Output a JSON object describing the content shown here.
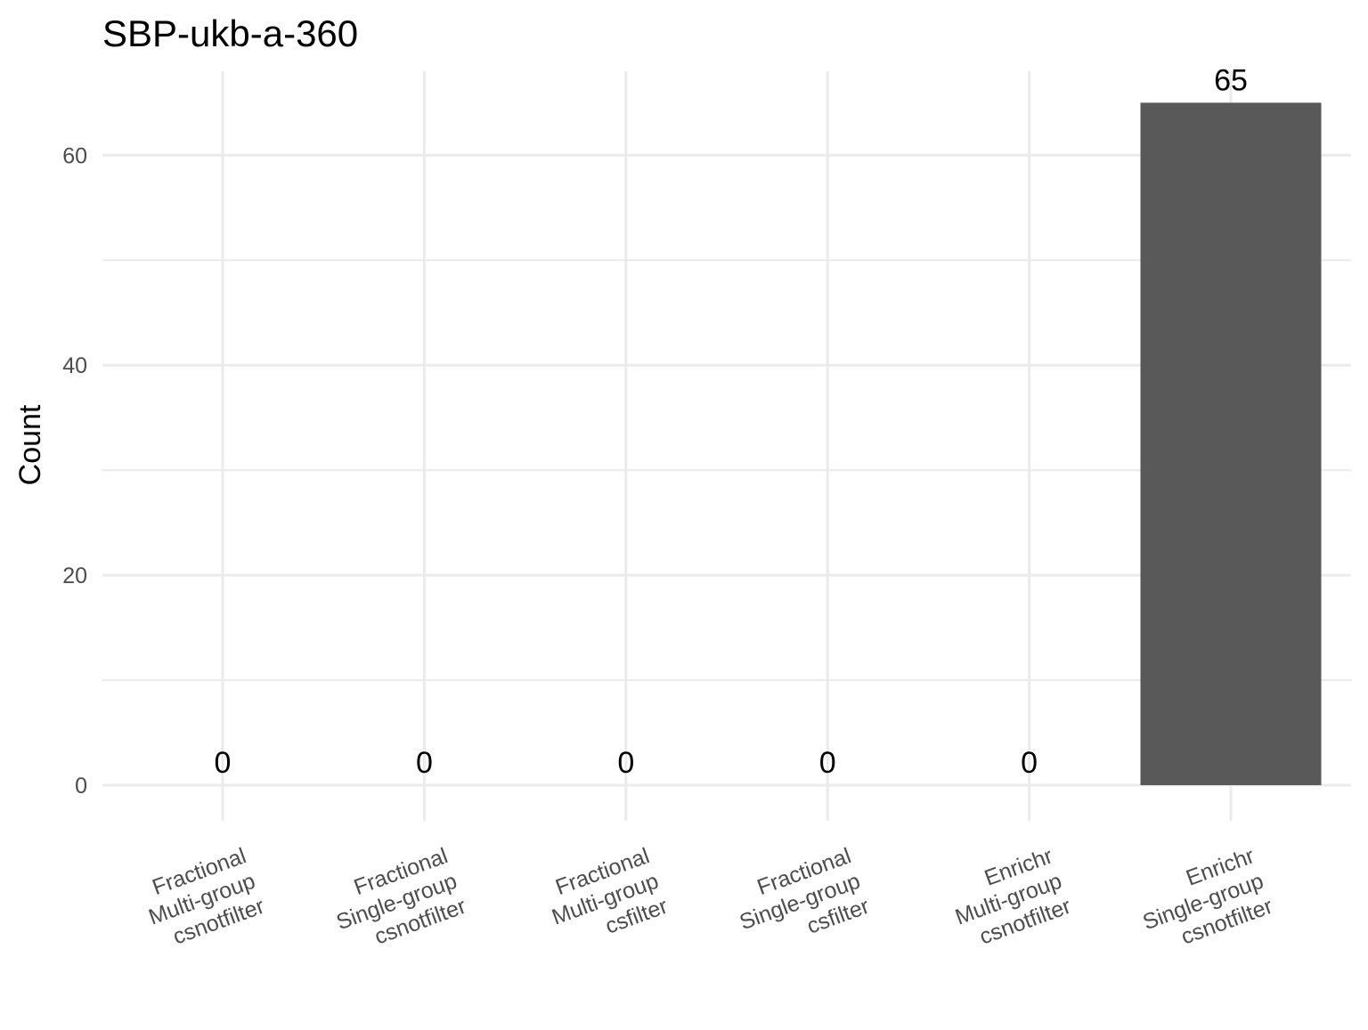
{
  "chart_data": {
    "type": "bar",
    "title": "SBP-ukb-a-360",
    "xlabel": "",
    "ylabel": "Count",
    "categories": [
      [
        "Fractional",
        "Multi-group",
        "csnotfilter"
      ],
      [
        "Fractional",
        "Single-group",
        "csnotfilter"
      ],
      [
        "Fractional",
        "Multi-group",
        "csfilter"
      ],
      [
        "Fractional",
        "Single-group",
        "csfilter"
      ],
      [
        "Enrichr",
        "Multi-group",
        "csnotfilter"
      ],
      [
        "Enrichr",
        "Single-group",
        "csnotfilter"
      ]
    ],
    "values": [
      0,
      0,
      0,
      0,
      0,
      65
    ],
    "data_labels": [
      "0",
      "0",
      "0",
      "0",
      "0",
      "65"
    ],
    "ylim": [
      0,
      68
    ],
    "yticks": [
      0,
      20,
      40,
      60
    ],
    "ytick_labels": [
      "0",
      "20",
      "40",
      "60"
    ],
    "grid": true,
    "bar_color": "#595959",
    "grid_color": "#ebebeb",
    "legend": "none"
  }
}
